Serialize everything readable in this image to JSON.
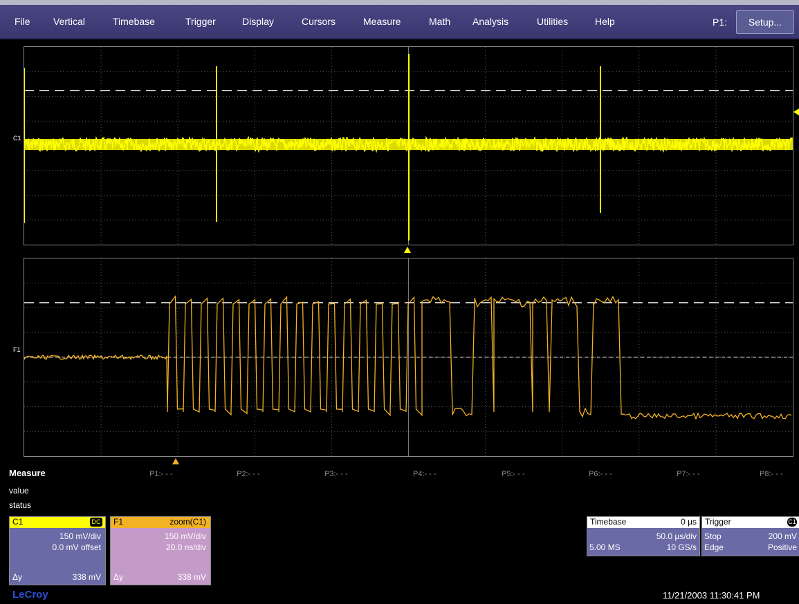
{
  "menubar": {
    "items": [
      "File",
      "Vertical",
      "Timebase",
      "Trigger",
      "Display",
      "Cursors",
      "Measure",
      "Math",
      "Analysis",
      "Utilities",
      "Help"
    ],
    "p1_label": "P1:",
    "setup_label": "Setup..."
  },
  "grid_top": {
    "channel_label": "C1"
  },
  "grid_bottom": {
    "channel_label": "F1"
  },
  "measure": {
    "title": "Measure",
    "row_value": "value",
    "row_status": "status",
    "params": [
      "P1:- - -",
      "P2:- - -",
      "P3:- - -",
      "P4:- - -",
      "P5:- - -",
      "P6:- - -",
      "P7:- - -",
      "P8:- - -"
    ]
  },
  "c1": {
    "name": "C1",
    "coupling": "DC",
    "vdiv": "150 mV/div",
    "offset": "0.0 mV offset",
    "dy_label": "Δy",
    "dy_value": "338 mV"
  },
  "f1": {
    "name": "F1",
    "source": "zoom(C1)",
    "vdiv": "150 mV/div",
    "tdiv": "20.0 ns/div",
    "dy_label": "Δy",
    "dy_value": "338 mV"
  },
  "timebase": {
    "title": "Timebase",
    "delay": "0 µs",
    "tdiv": "50.0 µs/div",
    "samples": "5.00 MS",
    "rate": "10 GS/s"
  },
  "trigger": {
    "title": "Trigger",
    "source_badge": "C1",
    "mode": "Stop",
    "level": "200 mV",
    "type": "Edge",
    "slope": "Positive"
  },
  "logo": "LeCroy",
  "datetime": "11/21/2003 11:30:41 PM",
  "colors": {
    "c1_trace": "#ffff00",
    "f1_trace": "#f2b224",
    "menubar": "#3f3b78",
    "grid": "#8a8a8a"
  }
}
